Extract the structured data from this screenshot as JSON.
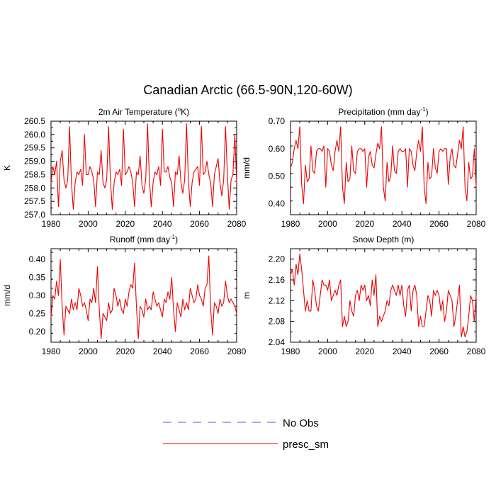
{
  "title": "Canadian Arctic (66.5-90N,120-60W)",
  "legend": [
    {
      "label": "No Obs",
      "color": "#5555ee",
      "dash": true
    },
    {
      "label": "presc_sm",
      "color": "#ee0000",
      "dash": false
    }
  ],
  "chart_data": [
    {
      "type": "line",
      "title": "2m Air Temperature (°K)",
      "title_parts": {
        "pre": "2m Air Temperature (",
        "sup": "o",
        "post": "K)"
      },
      "ylabel": "K",
      "xlim": [
        1980,
        2080
      ],
      "ylim": [
        257.0,
        260.5
      ],
      "xticks": [
        1980,
        2000,
        2020,
        2040,
        2060,
        2080
      ],
      "yticks": [
        257.0,
        257.5,
        258.0,
        258.5,
        259.0,
        259.5,
        260.0,
        260.5
      ],
      "ytick_labels": [
        "257.0",
        "257.5",
        "258.0",
        "258.5",
        "259.0",
        "259.5",
        "260.0",
        "260.5"
      ],
      "series": [
        {
          "name": "presc_sm",
          "x_start": 1980,
          "x_step": 1,
          "values": [
            258.2,
            258.8,
            258.5,
            259.0,
            257.3,
            259.0,
            259.4,
            258.3,
            258.0,
            258.3,
            260.3,
            258.2,
            257.2,
            258.2,
            258.6,
            258.5,
            258.7,
            258.1,
            260.0,
            258.5,
            258.5,
            258.8,
            258.6,
            258.3,
            257.3,
            258.6,
            258.5,
            259.4,
            258.2,
            258.0,
            258.3,
            260.3,
            258.3,
            257.2,
            258.2,
            258.6,
            258.5,
            258.7,
            258.1,
            260.2,
            258.5,
            258.6,
            258.8,
            258.6,
            258.2,
            257.3,
            258.6,
            258.5,
            259.2,
            258.1,
            257.8,
            258.3,
            260.4,
            258.3,
            257.3,
            258.2,
            258.6,
            258.5,
            258.8,
            258.1,
            260.2,
            258.6,
            258.6,
            258.8,
            258.4,
            258.2,
            257.3,
            258.6,
            258.5,
            259.2,
            258.2,
            257.8,
            258.3,
            260.4,
            258.3,
            257.3,
            258.2,
            258.6,
            258.7,
            258.8,
            258.1,
            260.3,
            258.5,
            258.6,
            259.0,
            258.5,
            258.2,
            257.3,
            258.5,
            258.8,
            259.1,
            258.2,
            257.7,
            258.3,
            260.3,
            258.5,
            257.2,
            258.3,
            258.5,
            260.0,
            258.2
          ]
        }
      ]
    },
    {
      "type": "line",
      "title": "Precipitation (mm day-1)",
      "title_parts": {
        "pre": "Precipitation (mm day",
        "sup": "-1",
        "post": ")"
      },
      "ylabel": "mm/d",
      "xlim": [
        1980,
        2080
      ],
      "ylim": [
        0.36,
        0.7
      ],
      "xticks": [
        1980,
        2000,
        2020,
        2040,
        2060,
        2080
      ],
      "yticks": [
        0.4,
        0.5,
        0.6,
        0.7
      ],
      "ytick_labels": [
        "0.40",
        "0.50",
        "0.60",
        "0.70"
      ],
      "series": [
        {
          "name": "presc_sm",
          "x_start": 1980,
          "x_step": 1,
          "values": [
            0.53,
            0.55,
            0.6,
            0.63,
            0.6,
            0.68,
            0.47,
            0.4,
            0.54,
            0.48,
            0.49,
            0.61,
            0.52,
            0.51,
            0.59,
            0.6,
            0.6,
            0.59,
            0.61,
            0.46,
            0.6,
            0.59,
            0.54,
            0.52,
            0.59,
            0.63,
            0.59,
            0.68,
            0.46,
            0.4,
            0.55,
            0.48,
            0.49,
            0.61,
            0.52,
            0.51,
            0.59,
            0.6,
            0.6,
            0.59,
            0.6,
            0.46,
            0.57,
            0.59,
            0.54,
            0.53,
            0.58,
            0.62,
            0.6,
            0.68,
            0.46,
            0.41,
            0.55,
            0.48,
            0.5,
            0.61,
            0.52,
            0.51,
            0.59,
            0.6,
            0.59,
            0.59,
            0.6,
            0.46,
            0.6,
            0.59,
            0.54,
            0.52,
            0.59,
            0.63,
            0.59,
            0.68,
            0.46,
            0.4,
            0.55,
            0.49,
            0.5,
            0.6,
            0.53,
            0.51,
            0.59,
            0.6,
            0.59,
            0.6,
            0.6,
            0.47,
            0.57,
            0.6,
            0.54,
            0.53,
            0.58,
            0.63,
            0.6,
            0.68,
            0.46,
            0.41,
            0.55,
            0.49,
            0.5,
            0.6,
            0.46
          ]
        }
      ]
    },
    {
      "type": "line",
      "title": "Runoff (mm day-1)",
      "title_parts": {
        "pre": "Runoff (mm day",
        "sup": "-1",
        "post": ")"
      },
      "ylabel": "mm/d",
      "xlim": [
        1980,
        2080
      ],
      "ylim": [
        0.17,
        0.43
      ],
      "xticks": [
        1980,
        2000,
        2020,
        2040,
        2060,
        2080
      ],
      "yticks": [
        0.2,
        0.25,
        0.3,
        0.35,
        0.4
      ],
      "ytick_labels": [
        "0.20",
        "0.25",
        "0.30",
        "0.35",
        "0.40"
      ],
      "series": [
        {
          "name": "presc_sm",
          "x_start": 1980,
          "x_step": 1,
          "values": [
            0.24,
            0.3,
            0.29,
            0.34,
            0.3,
            0.4,
            0.27,
            0.19,
            0.27,
            0.26,
            0.25,
            0.29,
            0.26,
            0.28,
            0.26,
            0.32,
            0.3,
            0.27,
            0.28,
            0.26,
            0.23,
            0.29,
            0.28,
            0.32,
            0.28,
            0.38,
            0.26,
            0.18,
            0.25,
            0.24,
            0.23,
            0.28,
            0.25,
            0.26,
            0.32,
            0.3,
            0.27,
            0.29,
            0.26,
            0.25,
            0.29,
            0.27,
            0.31,
            0.33,
            0.32,
            0.39,
            0.27,
            0.18,
            0.27,
            0.26,
            0.24,
            0.29,
            0.26,
            0.27,
            0.26,
            0.31,
            0.29,
            0.27,
            0.28,
            0.26,
            0.24,
            0.29,
            0.28,
            0.31,
            0.29,
            0.35,
            0.26,
            0.2,
            0.28,
            0.26,
            0.24,
            0.29,
            0.26,
            0.28,
            0.26,
            0.32,
            0.3,
            0.28,
            0.29,
            0.33,
            0.3,
            0.29,
            0.27,
            0.32,
            0.33,
            0.41,
            0.26,
            0.19,
            0.28,
            0.27,
            0.25,
            0.29,
            0.27,
            0.28,
            0.34,
            0.3,
            0.28,
            0.29,
            0.28,
            0.27,
            0.25
          ]
        }
      ]
    },
    {
      "type": "line",
      "title": "Snow Depth (m)",
      "title_parts": {
        "pre": "Snow Depth (m)",
        "sup": "",
        "post": ""
      },
      "ylabel": "m",
      "xlim": [
        1980,
        2080
      ],
      "ylim": [
        2.04,
        2.22
      ],
      "xticks": [
        1980,
        2000,
        2020,
        2040,
        2060,
        2080
      ],
      "yticks": [
        2.04,
        2.08,
        2.12,
        2.16,
        2.2
      ],
      "ytick_labels": [
        "2.04",
        "2.08",
        "2.12",
        "2.16",
        "2.20"
      ],
      "series": [
        {
          "name": "presc_sm",
          "x_start": 1980,
          "x_step": 1,
          "values": [
            2.17,
            2.18,
            2.15,
            2.19,
            2.17,
            2.21,
            2.18,
            2.14,
            2.1,
            2.12,
            2.1,
            2.1,
            2.16,
            2.14,
            2.11,
            2.1,
            2.13,
            2.16,
            2.15,
            2.15,
            2.14,
            2.16,
            2.12,
            2.13,
            2.14,
            2.13,
            2.15,
            2.16,
            2.07,
            2.09,
            2.07,
            2.08,
            2.12,
            2.1,
            2.09,
            2.13,
            2.14,
            2.12,
            2.15,
            2.14,
            2.15,
            2.12,
            2.13,
            2.11,
            2.16,
            2.13,
            2.17,
            2.07,
            2.09,
            2.08,
            2.09,
            2.1,
            2.12,
            2.11,
            2.14,
            2.15,
            2.14,
            2.13,
            2.15,
            2.13,
            2.15,
            2.11,
            2.09,
            2.14,
            2.15,
            2.1,
            2.14,
            2.15,
            2.13,
            2.07,
            2.09,
            2.07,
            2.07,
            2.1,
            2.13,
            2.12,
            2.09,
            2.14,
            2.13,
            2.14,
            2.13,
            2.1,
            2.12,
            2.08,
            2.1,
            2.14,
            2.13,
            2.12,
            2.07,
            2.09,
            2.12,
            2.15,
            2.05,
            2.07,
            2.05,
            2.06,
            2.09,
            2.13,
            2.12,
            2.08,
            2.13
          ]
        }
      ]
    }
  ]
}
